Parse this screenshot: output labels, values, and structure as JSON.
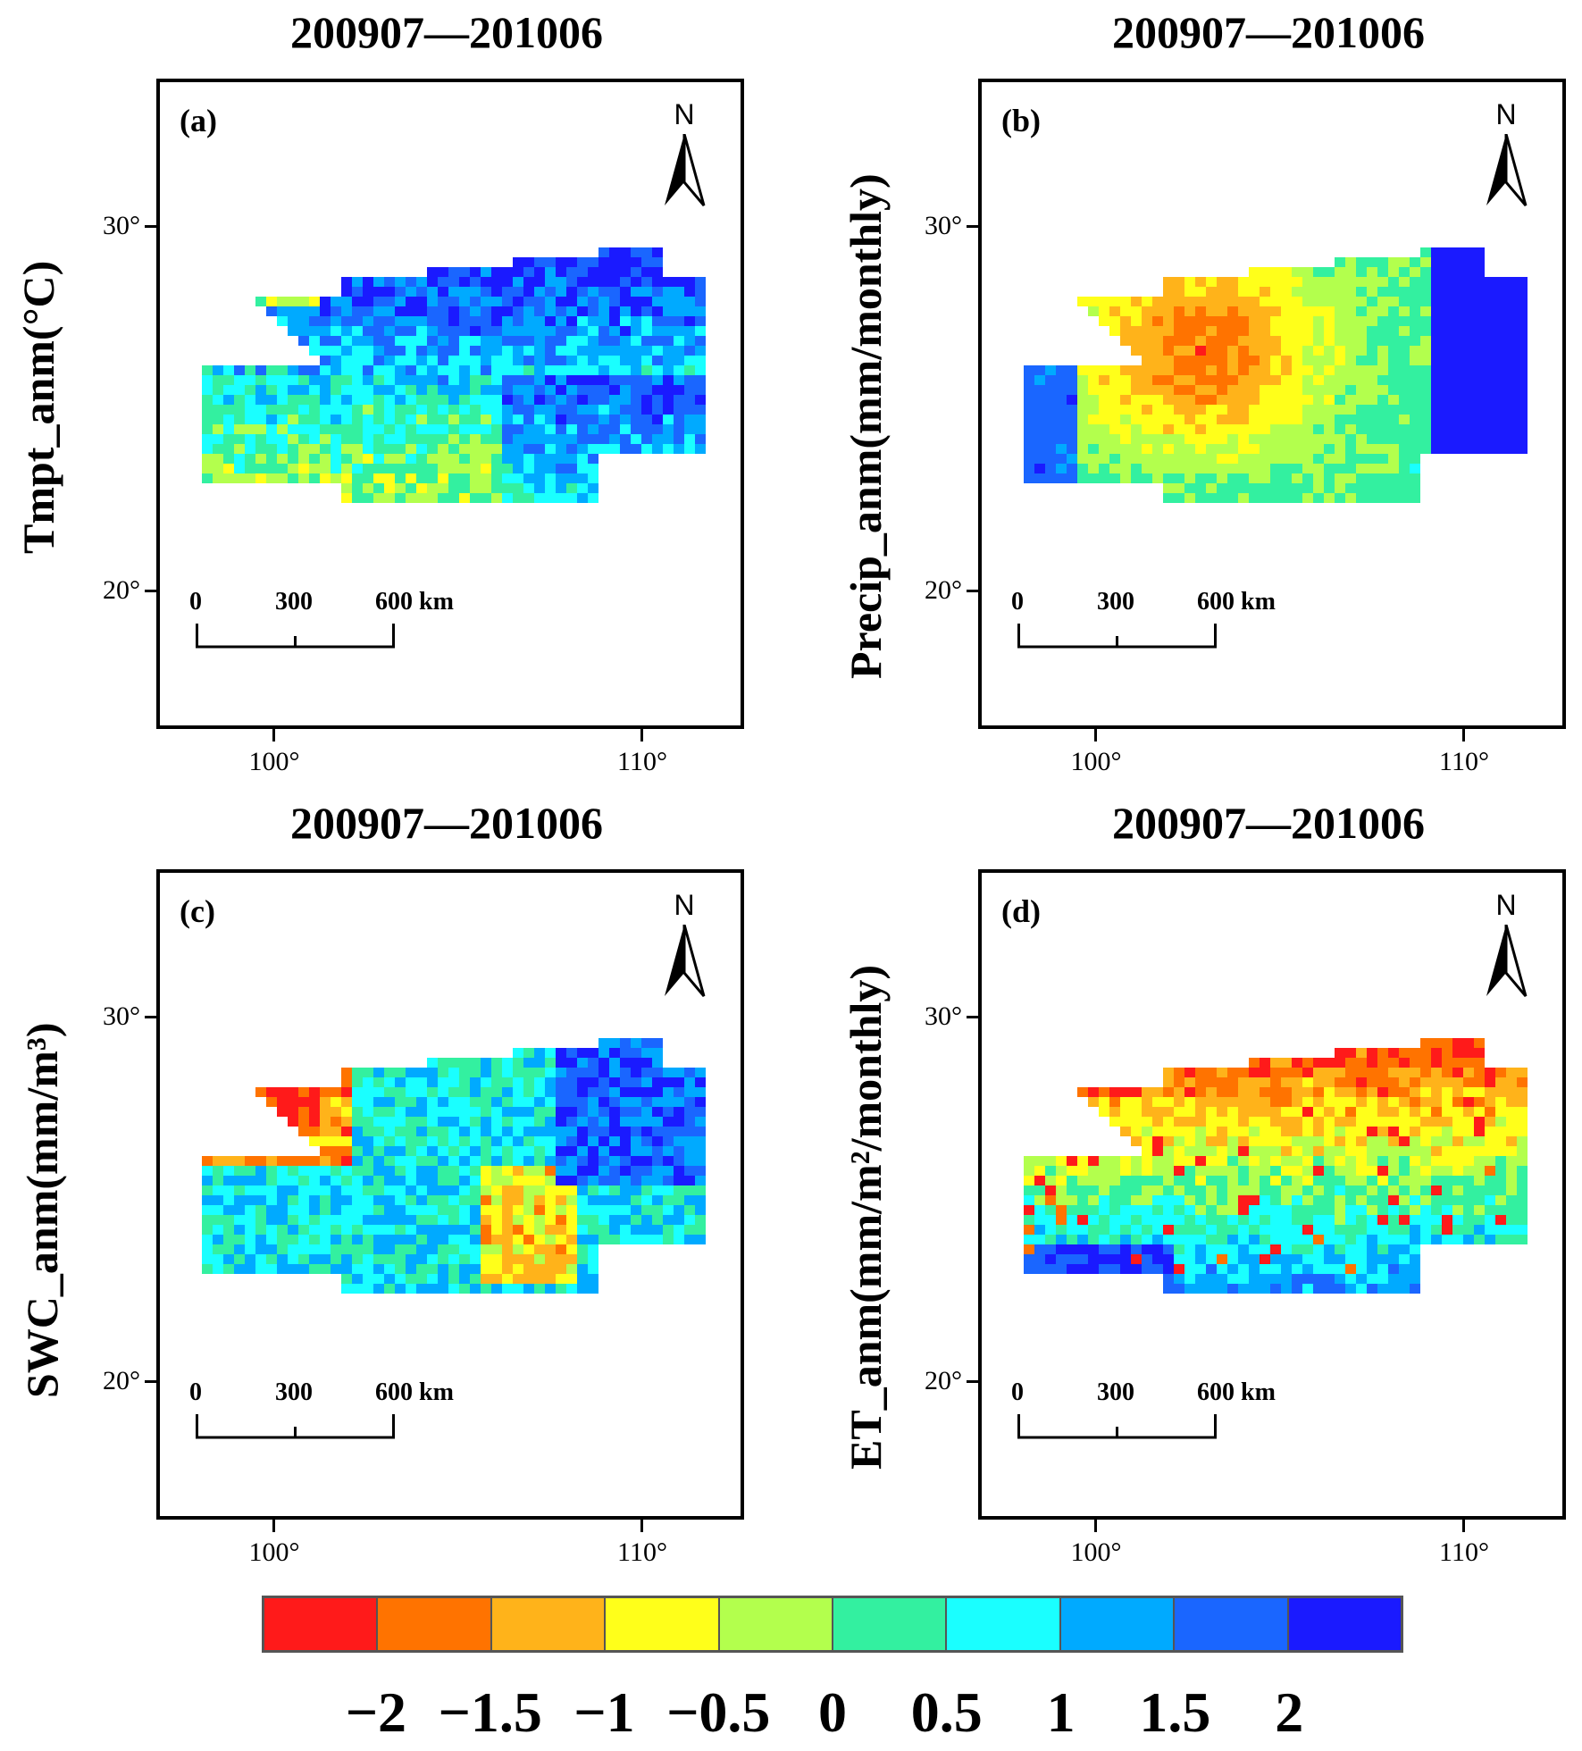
{
  "panels": [
    {
      "id": "a",
      "title": "200907—201006",
      "label": "(a)",
      "ylabel": "Tmpt_anm(°C)",
      "north": "N",
      "north_icon": "north-arrow-icon",
      "scale": [
        "0",
        "300",
        "600 km"
      ],
      "yticks": [
        "30°",
        "20°"
      ],
      "xticks": [
        "100°",
        "110°"
      ],
      "pattern": "tmpt"
    },
    {
      "id": "b",
      "title": "200907—201006",
      "label": "(b)",
      "ylabel": "Precip_anm(mm/monthly)",
      "north": "N",
      "north_icon": "north-arrow-icon",
      "scale": [
        "0",
        "300",
        "600 km"
      ],
      "yticks": [
        "30°",
        "20°"
      ],
      "xticks": [
        "100°",
        "110°"
      ],
      "pattern": "precip"
    },
    {
      "id": "c",
      "title": "200907—201006",
      "label": "(c)",
      "ylabel": "SWC_anm(mm/m³)",
      "north": "N",
      "north_icon": "north-arrow-icon",
      "scale": [
        "0",
        "300",
        "600 km"
      ],
      "yticks": [
        "30°",
        "20°"
      ],
      "xticks": [
        "100°",
        "110°"
      ],
      "pattern": "swc"
    },
    {
      "id": "d",
      "title": "200907—201006",
      "label": "(d)",
      "ylabel": "ET_anm(mm/m²/monthly)",
      "north": "N",
      "north_icon": "north-arrow-icon",
      "scale": [
        "0",
        "300",
        "600 km"
      ],
      "yticks": [
        "30°",
        "20°"
      ],
      "xticks": [
        "100°",
        "110°"
      ],
      "pattern": "et"
    }
  ],
  "colorbar": {
    "colors": [
      "#ff1a1a",
      "#ff7300",
      "#ffb31a",
      "#ffff1a",
      "#b3ff4d",
      "#33f0a0",
      "#1affff",
      "#00aaff",
      "#1a66ff",
      "#1a1aff"
    ],
    "labels": [
      "−2",
      "−1.5",
      "−1",
      "−0.5",
      "0",
      "0.5",
      "1",
      "1.5",
      "2"
    ]
  }
}
